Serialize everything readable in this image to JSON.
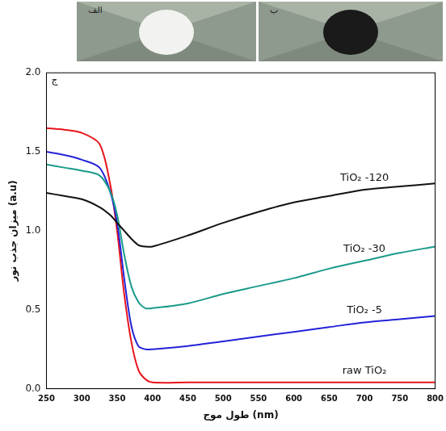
{
  "photos": [
    {
      "label": "الف"
    },
    {
      "label": "ب"
    }
  ],
  "chart_data": {
    "type": "line",
    "xlabel": "طول موج (nm)",
    "ylabel": "میزان جذب نور (a.u)",
    "annotations": [
      {
        "text": "ج"
      }
    ],
    "x": [
      250,
      275,
      300,
      325,
      340,
      350,
      360,
      370,
      380,
      390,
      400,
      450,
      500,
      550,
      600,
      650,
      700,
      750,
      800
    ],
    "series": [
      {
        "name": "TiO₂ -120",
        "color": "#111111",
        "values": [
          1.24,
          1.22,
          1.2,
          1.15,
          1.1,
          1.05,
          1.0,
          0.95,
          0.91,
          0.9,
          0.9,
          0.97,
          1.05,
          1.12,
          1.18,
          1.22,
          1.26,
          1.28,
          1.3
        ]
      },
      {
        "name": "TiO₂ -30",
        "color": "#1a9a8a",
        "values": [
          1.42,
          1.4,
          1.38,
          1.35,
          1.25,
          1.1,
          0.85,
          0.65,
          0.55,
          0.51,
          0.51,
          0.54,
          0.6,
          0.65,
          0.7,
          0.76,
          0.81,
          0.86,
          0.9
        ]
      },
      {
        "name": "TiO₂ -5",
        "color": "#2323d8",
        "values": [
          1.5,
          1.48,
          1.45,
          1.4,
          1.25,
          1.05,
          0.7,
          0.4,
          0.27,
          0.25,
          0.25,
          0.27,
          0.3,
          0.33,
          0.36,
          0.39,
          0.42,
          0.44,
          0.46
        ]
      },
      {
        "name": "raw TiO₂",
        "color": "#e8141c",
        "values": [
          1.65,
          1.64,
          1.62,
          1.55,
          1.3,
          1.0,
          0.6,
          0.3,
          0.12,
          0.06,
          0.04,
          0.04,
          0.04,
          0.04,
          0.04,
          0.04,
          0.04,
          0.04,
          0.04
        ]
      }
    ],
    "xlim": [
      250,
      800
    ],
    "xticks": [
      250,
      300,
      350,
      400,
      450,
      500,
      550,
      600,
      650,
      700,
      750,
      800
    ],
    "ylim": [
      0,
      2
    ],
    "yticks": [
      {
        "value": 0,
        "label": "0.0"
      },
      {
        "value": 0.5,
        "label": "0.5"
      },
      {
        "value": 1,
        "label": "1.0"
      },
      {
        "value": 1.5,
        "label": "1.5"
      },
      {
        "value": 2,
        "label": "2.0"
      }
    ],
    "grid": false
  }
}
